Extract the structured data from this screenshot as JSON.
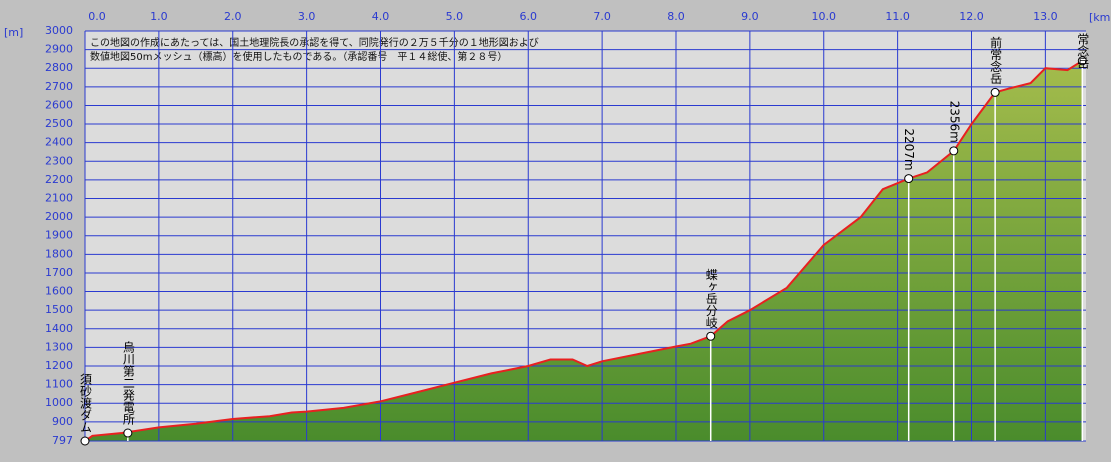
{
  "chart_data": {
    "type": "area",
    "x_unit": "[km]",
    "y_unit": "[m]",
    "note": [
      "この地図の作成にあたっては、国土地理院長の承認を得て、同院発行の２万５千分の１地形図および",
      "数値地図50mメッシュ（標高）を使用したものである。（承認番号　平１４総使、第２８号）"
    ],
    "x": [
      0,
      0.1,
      0.5,
      1.0,
      1.5,
      2.0,
      2.5,
      2.8,
      3.0,
      3.5,
      4.0,
      4.5,
      5.0,
      5.5,
      6.0,
      6.3,
      6.6,
      6.8,
      7.0,
      7.5,
      8.0,
      8.2,
      8.47,
      8.7,
      9.0,
      9.5,
      10.0,
      10.5,
      10.8,
      11.15,
      11.4,
      11.76,
      12.0,
      12.32,
      12.5,
      12.8,
      13.0,
      13.3,
      13.5
    ],
    "values": [
      797,
      825,
      840,
      870,
      890,
      915,
      930,
      950,
      955,
      975,
      1010,
      1060,
      1110,
      1160,
      1200,
      1235,
      1235,
      1200,
      1225,
      1265,
      1305,
      1320,
      1360,
      1440,
      1500,
      1620,
      1850,
      2000,
      2150,
      2207,
      2240,
      2356,
      2500,
      2670,
      2690,
      2720,
      2800,
      2790,
      2840
    ],
    "line_color": "#e82020",
    "fill_top": "#a4bc4c",
    "fill_bottom": "#4a8c2c",
    "xlim": [
      0,
      13.55
    ],
    "ylim": [
      797,
      3000
    ],
    "xticks": [
      {
        "value": 0,
        "label": "0.0"
      },
      {
        "value": 1,
        "label": "1.0"
      },
      {
        "value": 2,
        "label": "2.0"
      },
      {
        "value": 3,
        "label": "3.0"
      },
      {
        "value": 4,
        "label": "4.0"
      },
      {
        "value": 5,
        "label": "5.0"
      },
      {
        "value": 6,
        "label": "6.0"
      },
      {
        "value": 7,
        "label": "7.0"
      },
      {
        "value": 8,
        "label": "8.0"
      },
      {
        "value": 9,
        "label": "9.0"
      },
      {
        "value": 10,
        "label": "10.0"
      },
      {
        "value": 11,
        "label": "11.0"
      },
      {
        "value": 12,
        "label": "12.0"
      },
      {
        "value": 13,
        "label": "13.0"
      }
    ],
    "yticks": [
      797,
      900,
      1000,
      1100,
      1200,
      1300,
      1400,
      1500,
      1600,
      1700,
      1800,
      1900,
      2000,
      2100,
      2200,
      2300,
      2400,
      2500,
      2600,
      2700,
      2800,
      2900,
      3000
    ],
    "grid": true,
    "markers": [
      {
        "label": "須砂渡ダム",
        "x": 0,
        "y": 797
      },
      {
        "label": "烏川第二発電所",
        "x": 0.58,
        "y": 840
      },
      {
        "label": "蝶ヶ岳分岐",
        "x": 8.47,
        "y": 1360
      },
      {
        "label": "2207m",
        "x": 11.15,
        "y": 2207
      },
      {
        "label": "2356m",
        "x": 11.76,
        "y": 2356
      },
      {
        "label": "前常念岳",
        "x": 12.32,
        "y": 2670
      },
      {
        "label": "常念岳",
        "x": 13.5,
        "y": 2840
      }
    ]
  }
}
